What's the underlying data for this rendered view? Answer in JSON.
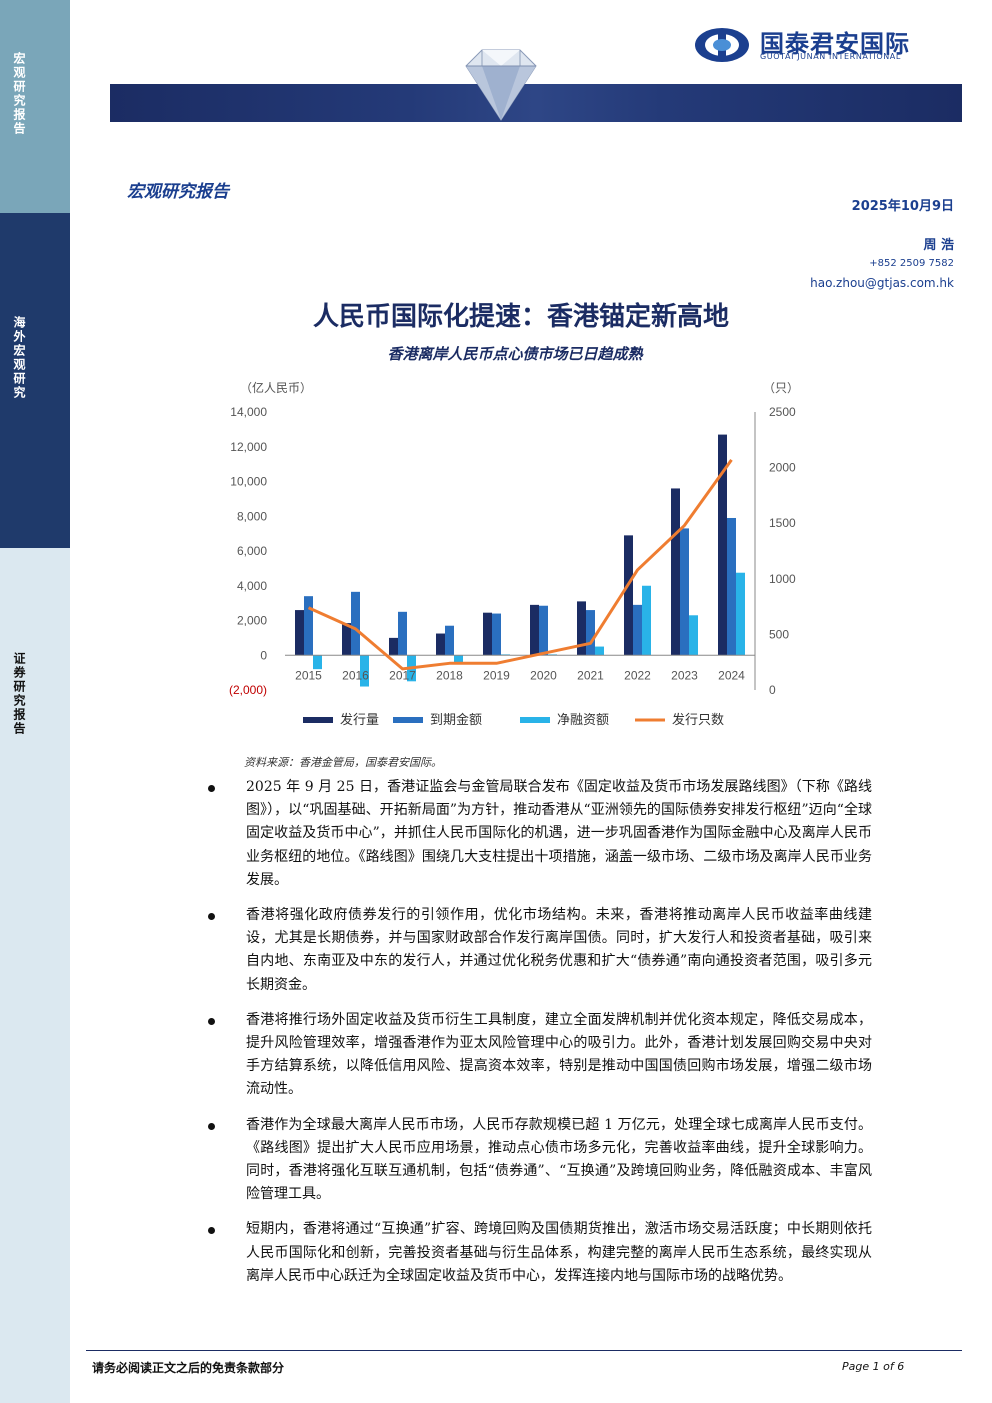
{
  "sidebar": {
    "label_top": "宏观研究报告",
    "label_mid": "海外宏观研究",
    "label_bot": "证券研究报告"
  },
  "logo": {
    "name_cn": "国泰君安国际",
    "name_en": "GUOTAI JUNAN INTERNATIONAL"
  },
  "header": {
    "report_type": "宏观研究报告",
    "date": "2025年10月9日",
    "author": "周 浩",
    "phone": "+852 2509 7582",
    "email": "hao.zhou@gtjas.com.hk"
  },
  "title": "人民币国际化提速：香港锚定新高地",
  "subtitle": "香港离岸人民币点心债市场已日趋成熟",
  "chart_data": {
    "type": "bar",
    "title": "",
    "categories": [
      "2015",
      "2016",
      "2017",
      "2018",
      "2019",
      "2020",
      "2021",
      "2022",
      "2023",
      "2024"
    ],
    "series": [
      {
        "name": "发行量",
        "axis": "left",
        "kind": "bar",
        "color": "#1b2c63",
        "values": [
          2600,
          1850,
          1000,
          1250,
          2450,
          2900,
          3100,
          6900,
          9600,
          12700
        ]
      },
      {
        "name": "到期金额",
        "axis": "left",
        "kind": "bar",
        "color": "#2a6fbf",
        "values": [
          3400,
          3650,
          2500,
          1700,
          2400,
          2850,
          2600,
          2900,
          7300,
          7900
        ]
      },
      {
        "name": "净融资额",
        "axis": "left",
        "kind": "bar",
        "color": "#29b3e8",
        "values": [
          -800,
          -1800,
          -1500,
          -450,
          50,
          50,
          500,
          4000,
          2300,
          4750
        ]
      },
      {
        "name": "发行只数",
        "axis": "right",
        "kind": "line",
        "color": "#ef7d31",
        "values": [
          740,
          550,
          190,
          240,
          240,
          330,
          420,
          1080,
          1480,
          2070
        ]
      }
    ],
    "y_left": {
      "unit": "（亿人民币）",
      "min": -2000,
      "max": 14000,
      "ticks": [
        "(2,000)",
        "0",
        "2,000",
        "4,000",
        "6,000",
        "8,000",
        "10,000",
        "12,000",
        "14,000"
      ]
    },
    "y_right": {
      "unit": "（只）",
      "min": 0,
      "max": 2500,
      "ticks": [
        "0",
        "500",
        "1000",
        "1500",
        "2000",
        "2500"
      ]
    },
    "legend_position": "bottom",
    "grid": false
  },
  "source": "资料来源：香港金管局，国泰君安国际。",
  "bullets": [
    "2025 年 9 月 25 日，香港证监会与金管局联合发布《固定收益及货币市场发展路线图》（下称《路线图》），以“巩固基础、开拓新局面”为方针，推动香港从“亚洲领先的国际债券安排发行枢纽”迈向“全球固定收益及货币中心”，并抓住人民币国际化的机遇，进一步巩固香港作为国际金融中心及离岸人民币业务枢纽的地位。《路线图》围绕几大支柱提出十项措施，涵盖一级市场、二级市场及离岸人民币业务发展。",
    "香港将强化政府债券发行的引领作用，优化市场结构。未来，香港将推动离岸人民币收益率曲线建设，尤其是长期债券，并与国家财政部合作发行离岸国债。同时，扩大发行人和投资者基础，吸引来自内地、东南亚及中东的发行人，并通过优化税务优惠和扩大“债券通”南向通投资者范围，吸引多元长期资金。",
    "香港将推行场外固定收益及货币衍生工具制度，建立全面发牌机制并优化资本规定，降低交易成本，提升风险管理效率，增强香港作为亚太风险管理中心的吸引力。此外，香港计划发展回购交易中央对手方结算系统，以降低信用风险、提高资本效率，特别是推动中国国债回购市场发展，增强二级市场流动性。",
    "香港作为全球最大离岸人民币市场，人民币存款规模已超 1 万亿元，处理全球七成离岸人民币支付。《路线图》提出扩大人民币应用场景，推动点心债市场多元化，完善收益率曲线，提升全球影响力。同时，香港将强化互联互通机制，包括“债券通”、“互换通”及跨境回购业务，降低融资成本、丰富风险管理工具。",
    "短期内，香港将通过“互换通”扩容、跨境回购及国债期货推出，激活市场交易活跃度；中长期则依托人民币国际化和创新，完善投资者基础与衍生品体系，构建完整的离岸人民币生态系统，最终实现从离岸人民币中心跃迁为全球固定收益及货币中心，发挥连接内地与国际市场的战略优势。"
  ],
  "footer": {
    "disclaimer": "请务必阅读正文之后的免责条款部分",
    "page": "Page 1 of 6"
  }
}
